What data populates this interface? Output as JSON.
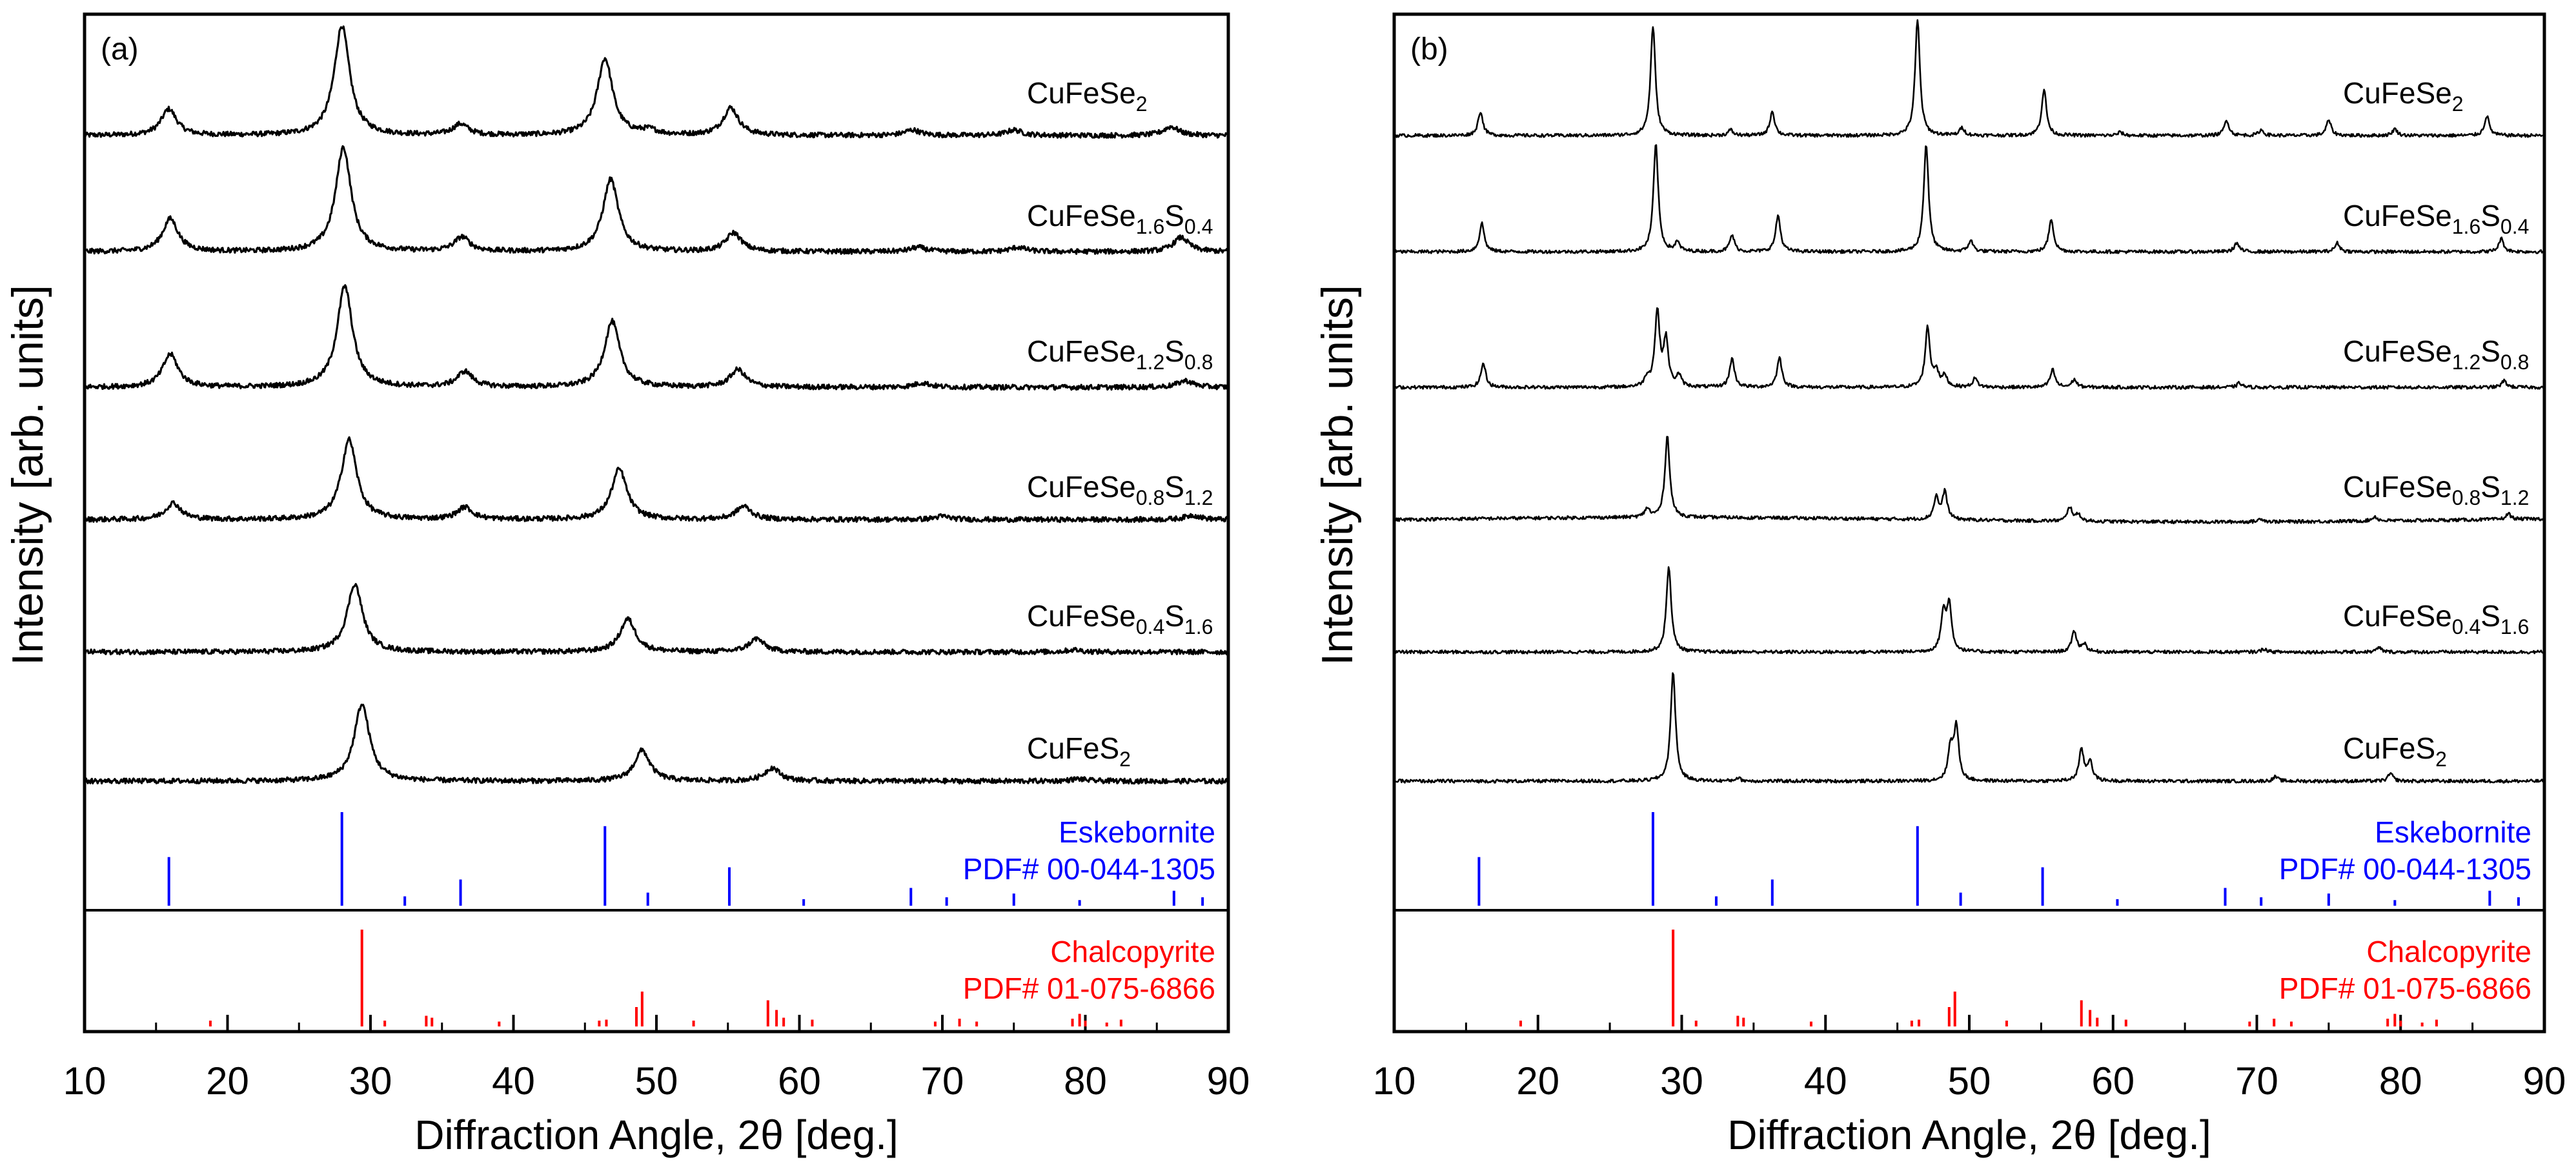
{
  "chart_data": [
    {
      "type": "line",
      "panel": "(a)",
      "xlabel": "Diffraction Angle, 2θ [deg.]",
      "ylabel": "Intensity [arb. units]",
      "xlim": [
        10,
        90
      ],
      "xticks": [
        "10",
        "20",
        "30",
        "40",
        "50",
        "60",
        "70",
        "80",
        "90"
      ],
      "peak_width": 0.65,
      "series": [
        {
          "name": "CuFeSe2",
          "label_main": "CuFeSe",
          "label_sub1": "2",
          "label_mid": "",
          "label_sub2": "",
          "peaks": [
            [
              15.9,
              0.24
            ],
            [
              28.0,
              1.0
            ],
            [
              36.3,
              0.1
            ],
            [
              46.4,
              0.7
            ],
            [
              49.5,
              0.04
            ],
            [
              55.2,
              0.25
            ],
            [
              67.9,
              0.05
            ],
            [
              75.0,
              0.05
            ],
            [
              86.0,
              0.08
            ]
          ]
        },
        {
          "name": "CuFeSe1.6S0.4",
          "label_main": "CuFeSe",
          "label_sub1": "1.6",
          "label_mid": "S",
          "label_sub2": "0.4",
          "peaks": [
            [
              16.0,
              0.3
            ],
            [
              28.1,
              0.95
            ],
            [
              36.4,
              0.13
            ],
            [
              46.8,
              0.66
            ],
            [
              55.4,
              0.17
            ],
            [
              68.3,
              0.04
            ],
            [
              75.3,
              0.04
            ],
            [
              86.7,
              0.13
            ]
          ]
        },
        {
          "name": "CuFeSe1.2S0.8",
          "label_main": "CuFeSe",
          "label_sub1": "1.2",
          "label_mid": "S",
          "label_sub2": "0.8",
          "peaks": [
            [
              16.0,
              0.3
            ],
            [
              28.2,
              0.92
            ],
            [
              36.6,
              0.14
            ],
            [
              46.9,
              0.6
            ],
            [
              55.7,
              0.16
            ],
            [
              68.6,
              0.04
            ],
            [
              87.0,
              0.06
            ]
          ]
        },
        {
          "name": "CuFeSe0.8S1.2",
          "label_main": "CuFeSe",
          "label_sub1": "0.8",
          "label_mid": "S",
          "label_sub2": "1.2",
          "peaks": [
            [
              16.2,
              0.15
            ],
            [
              28.5,
              0.73
            ],
            [
              36.6,
              0.11
            ],
            [
              47.4,
              0.46
            ],
            [
              56.1,
              0.12
            ],
            [
              70.0,
              0.03
            ],
            [
              87.5,
              0.04
            ]
          ]
        },
        {
          "name": "CuFeSe0.4S1.6",
          "label_main": "CuFeSe",
          "label_sub1": "0.4",
          "label_mid": "S",
          "label_sub2": "1.6",
          "peaks": [
            [
              28.9,
              0.62
            ],
            [
              48.0,
              0.3
            ],
            [
              57.0,
              0.12
            ],
            [
              79.2,
              0.02
            ]
          ]
        },
        {
          "name": "CuFeS2",
          "label_main": "CuFeS",
          "label_sub1": "2",
          "label_mid": "",
          "label_sub2": "",
          "peaks": [
            [
              29.4,
              0.7
            ],
            [
              49.0,
              0.28
            ],
            [
              58.1,
              0.12
            ],
            [
              79.5,
              0.02
            ]
          ]
        }
      ],
      "references": [
        {
          "name": "Eskebornite",
          "pdf": "PDF# 00-044-1305",
          "color": "#0000ff",
          "lines": [
            [
              15.9,
              0.52
            ],
            [
              28.0,
              1.0
            ],
            [
              32.4,
              0.1
            ],
            [
              36.3,
              0.28
            ],
            [
              46.4,
              0.85
            ],
            [
              49.4,
              0.14
            ],
            [
              55.1,
              0.41
            ],
            [
              60.3,
              0.07
            ],
            [
              67.8,
              0.19
            ],
            [
              70.3,
              0.09
            ],
            [
              75.0,
              0.13
            ],
            [
              79.6,
              0.06
            ],
            [
              86.2,
              0.16
            ],
            [
              88.2,
              0.09
            ]
          ]
        },
        {
          "name": "Chalcopyrite",
          "pdf": "PDF# 01-075-6866",
          "color": "#ff0000",
          "lines": [
            [
              18.8,
              0.06
            ],
            [
              29.4,
              1.0
            ],
            [
              31.0,
              0.06
            ],
            [
              33.9,
              0.11
            ],
            [
              34.3,
              0.09
            ],
            [
              39.0,
              0.05
            ],
            [
              46.0,
              0.06
            ],
            [
              46.5,
              0.07
            ],
            [
              48.6,
              0.2
            ],
            [
              49.0,
              0.36
            ],
            [
              52.6,
              0.06
            ],
            [
              57.8,
              0.27
            ],
            [
              58.4,
              0.17
            ],
            [
              58.9,
              0.09
            ],
            [
              60.9,
              0.07
            ],
            [
              69.5,
              0.05
            ],
            [
              71.2,
              0.08
            ],
            [
              72.4,
              0.05
            ],
            [
              79.1,
              0.08
            ],
            [
              79.6,
              0.13
            ],
            [
              80.0,
              0.06
            ],
            [
              81.5,
              0.04
            ],
            [
              82.5,
              0.07
            ]
          ]
        }
      ]
    },
    {
      "type": "line",
      "panel": "(b)",
      "xlabel": "Diffraction Angle, 2θ [deg.]",
      "ylabel": "Intensity [arb. units]",
      "xlim": [
        10,
        90
      ],
      "xticks": [
        "10",
        "20",
        "30",
        "40",
        "50",
        "60",
        "70",
        "80",
        "90"
      ],
      "peak_width": 0.2,
      "series": [
        {
          "name": "CuFeSe2",
          "label_main": "CuFeSe",
          "label_sub1": "2",
          "label_mid": "",
          "label_sub2": "",
          "peaks": [
            [
              16.0,
              0.22
            ],
            [
              28.0,
              1.0
            ],
            [
              33.4,
              0.05
            ],
            [
              36.3,
              0.22
            ],
            [
              46.4,
              1.05
            ],
            [
              49.5,
              0.07
            ],
            [
              55.2,
              0.42
            ],
            [
              60.5,
              0.03
            ],
            [
              67.9,
              0.14
            ],
            [
              70.3,
              0.05
            ],
            [
              75.0,
              0.14
            ],
            [
              79.6,
              0.06
            ],
            [
              86.0,
              0.18
            ]
          ]
        },
        {
          "name": "CuFeSe1.6S0.4",
          "label_main": "CuFeSe",
          "label_sub1": "1.6",
          "label_mid": "S",
          "label_sub2": "0.4",
          "peaks": [
            [
              16.1,
              0.26
            ],
            [
              28.2,
              0.98
            ],
            [
              29.7,
              0.08
            ],
            [
              33.5,
              0.15
            ],
            [
              36.7,
              0.33
            ],
            [
              47.0,
              0.98
            ],
            [
              50.1,
              0.1
            ],
            [
              55.7,
              0.3
            ],
            [
              68.6,
              0.08
            ],
            [
              75.6,
              0.08
            ],
            [
              87.0,
              0.12
            ]
          ]
        },
        {
          "name": "CuFeSe1.2S0.8",
          "label_main": "CuFeSe",
          "label_sub1": "1.2",
          "label_mid": "S",
          "label_sub2": "0.8",
          "peaks": [
            [
              16.2,
              0.22
            ],
            [
              27.6,
              0.08
            ],
            [
              28.3,
              0.68
            ],
            [
              28.9,
              0.42
            ],
            [
              29.8,
              0.1
            ],
            [
              33.5,
              0.26
            ],
            [
              36.8,
              0.27
            ],
            [
              47.1,
              0.54
            ],
            [
              47.7,
              0.14
            ],
            [
              48.3,
              0.1
            ],
            [
              50.4,
              0.08
            ],
            [
              55.8,
              0.16
            ],
            [
              57.3,
              0.07
            ],
            [
              68.8,
              0.04
            ],
            [
              87.2,
              0.06
            ]
          ]
        },
        {
          "name": "CuFeSe0.8S1.2",
          "label_main": "CuFeSe",
          "label_sub1": "0.8",
          "label_mid": "S",
          "label_sub2": "1.2",
          "peaks": [
            [
              27.6,
              0.08
            ],
            [
              29.0,
              0.74
            ],
            [
              47.7,
              0.2
            ],
            [
              48.3,
              0.25
            ],
            [
              57.0,
              0.13
            ],
            [
              57.6,
              0.06
            ],
            [
              70.3,
              0.03
            ],
            [
              78.2,
              0.04
            ],
            [
              87.5,
              0.05
            ]
          ]
        },
        {
          "name": "CuFeSe0.4S1.6",
          "label_main": "CuFeSe",
          "label_sub1": "0.4",
          "label_mid": "S",
          "label_sub2": "1.6",
          "peaks": [
            [
              29.1,
              0.78
            ],
            [
              48.2,
              0.34
            ],
            [
              48.6,
              0.42
            ],
            [
              57.3,
              0.19
            ],
            [
              58.0,
              0.07
            ],
            [
              70.5,
              0.03
            ],
            [
              78.5,
              0.04
            ]
          ]
        },
        {
          "name": "CuFeS2",
          "label_main": "CuFeS",
          "label_sub1": "2",
          "label_mid": "",
          "label_sub2": "",
          "peaks": [
            [
              29.4,
              1.0
            ],
            [
              33.9,
              0.03
            ],
            [
              48.7,
              0.3
            ],
            [
              49.1,
              0.48
            ],
            [
              57.8,
              0.28
            ],
            [
              58.4,
              0.18
            ],
            [
              71.3,
              0.04
            ],
            [
              79.3,
              0.07
            ]
          ]
        }
      ],
      "references": [
        {
          "name": "Eskebornite",
          "pdf": "PDF# 00-044-1305",
          "color": "#0000ff",
          "lines": [
            [
              15.9,
              0.52
            ],
            [
              28.0,
              1.0
            ],
            [
              32.4,
              0.1
            ],
            [
              36.3,
              0.28
            ],
            [
              46.4,
              0.85
            ],
            [
              49.4,
              0.14
            ],
            [
              55.1,
              0.41
            ],
            [
              60.3,
              0.07
            ],
            [
              67.8,
              0.19
            ],
            [
              70.3,
              0.09
            ],
            [
              75.0,
              0.13
            ],
            [
              79.6,
              0.06
            ],
            [
              86.2,
              0.16
            ],
            [
              88.2,
              0.09
            ]
          ]
        },
        {
          "name": "Chalcopyrite",
          "pdf": "PDF# 01-075-6866",
          "color": "#ff0000",
          "lines": [
            [
              18.8,
              0.06
            ],
            [
              29.4,
              1.0
            ],
            [
              31.0,
              0.06
            ],
            [
              33.9,
              0.11
            ],
            [
              34.3,
              0.09
            ],
            [
              39.0,
              0.05
            ],
            [
              46.0,
              0.06
            ],
            [
              46.5,
              0.07
            ],
            [
              48.6,
              0.2
            ],
            [
              49.0,
              0.36
            ],
            [
              52.6,
              0.06
            ],
            [
              57.8,
              0.27
            ],
            [
              58.4,
              0.17
            ],
            [
              58.9,
              0.09
            ],
            [
              60.9,
              0.07
            ],
            [
              69.5,
              0.05
            ],
            [
              71.2,
              0.08
            ],
            [
              72.4,
              0.05
            ],
            [
              79.1,
              0.08
            ],
            [
              79.6,
              0.13
            ],
            [
              80.0,
              0.06
            ],
            [
              81.5,
              0.04
            ],
            [
              82.5,
              0.07
            ]
          ]
        }
      ]
    }
  ]
}
